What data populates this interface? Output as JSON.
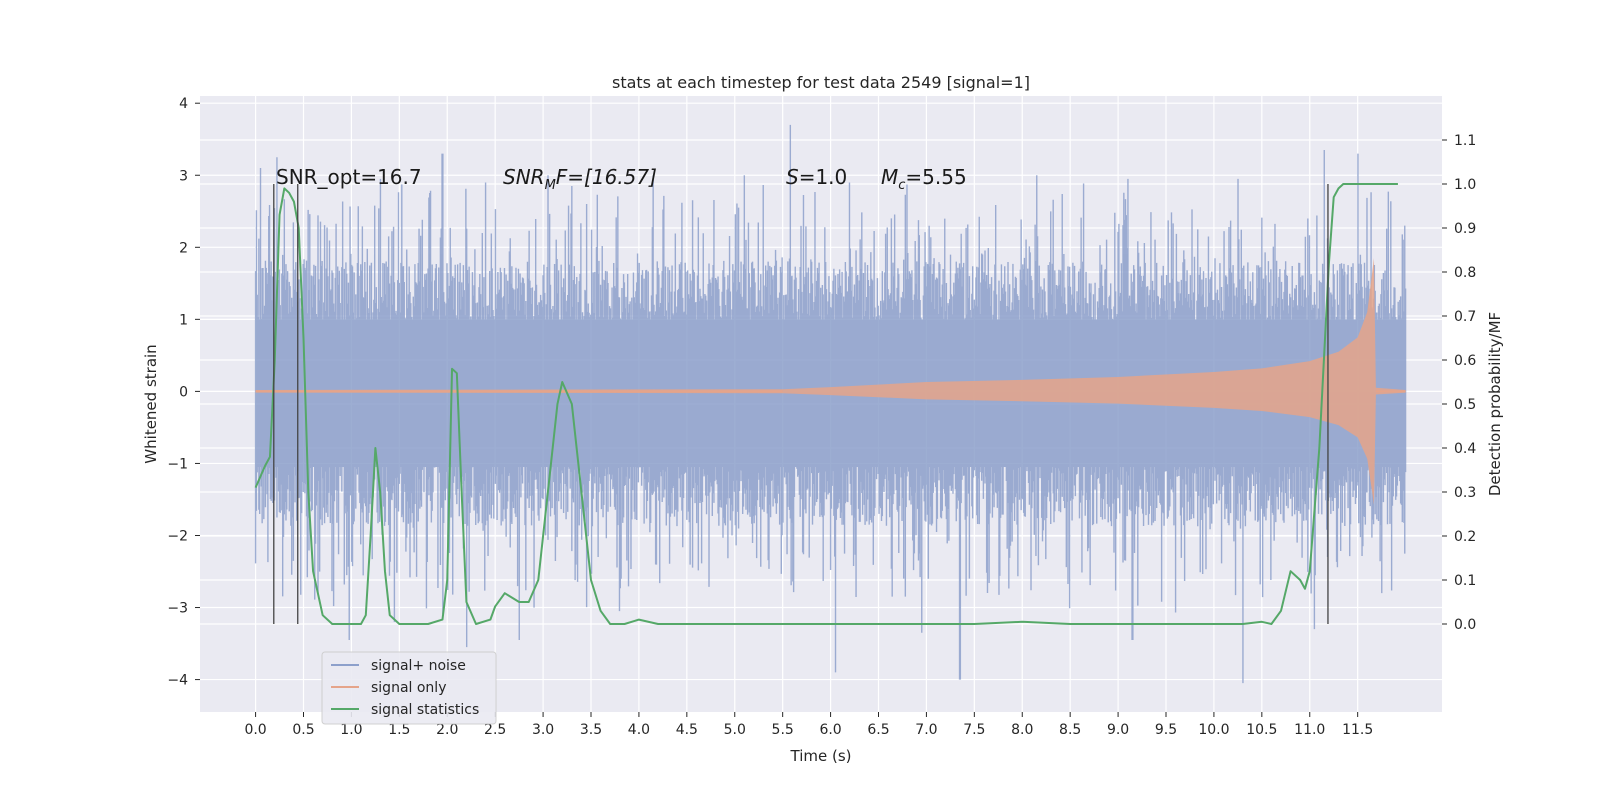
{
  "chart_data": {
    "type": "line",
    "title": "stats at each timestep for test data 2549 [signal=1]",
    "xlabel": "Time (s)",
    "ylabel": "Whitened strain",
    "ylabel_right": "Detection probability/MF",
    "xlim": [
      -0.58,
      12.38
    ],
    "ylim": [
      -4.45,
      4.1
    ],
    "ylim_right": [
      -0.2,
      1.2
    ],
    "grid": true,
    "xticks": [
      "0.0",
      "0.5",
      "1.0",
      "1.5",
      "2.0",
      "2.5",
      "3.0",
      "3.5",
      "4.0",
      "4.5",
      "5.0",
      "5.5",
      "6.0",
      "6.5",
      "7.0",
      "7.5",
      "8.0",
      "8.5",
      "9.0",
      "9.5",
      "10.0",
      "10.5",
      "11.0",
      "11.5"
    ],
    "yticks": [
      "4",
      "3",
      "2",
      "1",
      "0",
      "−1",
      "−2",
      "−3",
      "−4"
    ],
    "yticks_right": [
      "0.0",
      "0.1",
      "0.2",
      "0.3",
      "0.4",
      "0.5",
      "0.6",
      "0.7",
      "0.8",
      "0.9",
      "1.0",
      "1.1"
    ],
    "annotations": {
      "snr_opt": "SNR_opt=16.7",
      "snr_mf": "SNRₘF=[16.57]",
      "snr_mf_base": "SNR",
      "snr_mf_sub": "M",
      "snr_mf_rest": "F=[16.57]",
      "s_var": "S",
      "s_rest": "=1.0",
      "mc_var": "M",
      "mc_sub": "c",
      "mc_rest": "=5.55"
    },
    "vertical_markers_s": [
      0.19,
      0.44,
      11.19
    ],
    "legend_placement": "lower-left",
    "series": [
      {
        "name": "signal+ noise",
        "color": "#8da0cb",
        "kind": "noise",
        "x_range": [
          0.0,
          12.0
        ],
        "band_typical": [
          -1.7,
          1.65
        ],
        "max_spikes": [
          {
            "x": 0.05,
            "y": 3.1
          },
          {
            "x": 0.22,
            "y": 3.25
          },
          {
            "x": 1.3,
            "y": 2.95
          },
          {
            "x": 1.95,
            "y": 3.3
          },
          {
            "x": 2.4,
            "y": 2.9
          },
          {
            "x": 3.05,
            "y": 3.0
          },
          {
            "x": 4.15,
            "y": 3.0
          },
          {
            "x": 5.1,
            "y": 3.0
          },
          {
            "x": 5.58,
            "y": 3.7
          },
          {
            "x": 6.2,
            "y": 2.9
          },
          {
            "x": 8.15,
            "y": 3.0
          },
          {
            "x": 9.1,
            "y": 2.95
          },
          {
            "x": 10.25,
            "y": 2.95
          },
          {
            "x": 11.15,
            "y": 3.35
          },
          {
            "x": 11.5,
            "y": 3.3
          }
        ],
        "min_spikes": [
          {
            "x": 0.98,
            "y": -3.45
          },
          {
            "x": 1.45,
            "y": -3.2
          },
          {
            "x": 2.2,
            "y": -3.55
          },
          {
            "x": 2.75,
            "y": -3.45
          },
          {
            "x": 3.8,
            "y": -3.05
          },
          {
            "x": 6.05,
            "y": -3.9
          },
          {
            "x": 6.95,
            "y": -3.35
          },
          {
            "x": 7.35,
            "y": -4.0
          },
          {
            "x": 9.15,
            "y": -3.45
          },
          {
            "x": 10.3,
            "y": -4.05
          },
          {
            "x": 11.05,
            "y": -3.3
          }
        ]
      },
      {
        "name": "signal only",
        "color": "#e5a48a",
        "kind": "chirp",
        "x_range": [
          0.0,
          12.0
        ],
        "envelope": [
          {
            "x": 0.0,
            "y": 0.02
          },
          {
            "x": 5.5,
            "y": 0.03
          },
          {
            "x": 6.0,
            "y": 0.06
          },
          {
            "x": 7.0,
            "y": 0.13
          },
          {
            "x": 8.0,
            "y": 0.16
          },
          {
            "x": 9.0,
            "y": 0.2
          },
          {
            "x": 10.0,
            "y": 0.27
          },
          {
            "x": 10.5,
            "y": 0.32
          },
          {
            "x": 11.0,
            "y": 0.42
          },
          {
            "x": 11.3,
            "y": 0.55
          },
          {
            "x": 11.5,
            "y": 0.75
          },
          {
            "x": 11.6,
            "y": 1.1
          },
          {
            "x": 11.67,
            "y": 1.85
          },
          {
            "x": 11.69,
            "y": 0.05
          },
          {
            "x": 12.0,
            "y": 0.02
          }
        ]
      },
      {
        "name": "signal statistics",
        "color": "#55a868",
        "kind": "line",
        "axis": "right",
        "points": [
          [
            0.0,
            0.31
          ],
          [
            0.1,
            0.36
          ],
          [
            0.15,
            0.38
          ],
          [
            0.2,
            0.6
          ],
          [
            0.25,
            0.93
          ],
          [
            0.3,
            0.99
          ],
          [
            0.35,
            0.98
          ],
          [
            0.4,
            0.96
          ],
          [
            0.45,
            0.9
          ],
          [
            0.5,
            0.65
          ],
          [
            0.55,
            0.3
          ],
          [
            0.6,
            0.12
          ],
          [
            0.7,
            0.02
          ],
          [
            0.8,
            0.0
          ],
          [
            0.9,
            0.0
          ],
          [
            1.0,
            0.0
          ],
          [
            1.1,
            0.0
          ],
          [
            1.15,
            0.02
          ],
          [
            1.2,
            0.2
          ],
          [
            1.25,
            0.4
          ],
          [
            1.3,
            0.3
          ],
          [
            1.35,
            0.12
          ],
          [
            1.4,
            0.02
          ],
          [
            1.5,
            0.0
          ],
          [
            1.6,
            0.0
          ],
          [
            1.8,
            0.0
          ],
          [
            1.95,
            0.01
          ],
          [
            2.0,
            0.1
          ],
          [
            2.05,
            0.58
          ],
          [
            2.1,
            0.57
          ],
          [
            2.15,
            0.3
          ],
          [
            2.2,
            0.05
          ],
          [
            2.3,
            0.0
          ],
          [
            2.45,
            0.01
          ],
          [
            2.5,
            0.04
          ],
          [
            2.6,
            0.07
          ],
          [
            2.75,
            0.05
          ],
          [
            2.85,
            0.05
          ],
          [
            2.95,
            0.1
          ],
          [
            3.05,
            0.3
          ],
          [
            3.15,
            0.5
          ],
          [
            3.2,
            0.55
          ],
          [
            3.3,
            0.5
          ],
          [
            3.4,
            0.3
          ],
          [
            3.5,
            0.1
          ],
          [
            3.6,
            0.03
          ],
          [
            3.7,
            0.0
          ],
          [
            3.85,
            0.0
          ],
          [
            4.0,
            0.01
          ],
          [
            4.2,
            0.0
          ],
          [
            5.0,
            0.0
          ],
          [
            6.0,
            0.0
          ],
          [
            7.0,
            0.0
          ],
          [
            7.5,
            0.0
          ],
          [
            8.0,
            0.005
          ],
          [
            8.5,
            0.0
          ],
          [
            9.5,
            0.0
          ],
          [
            10.3,
            0.0
          ],
          [
            10.5,
            0.005
          ],
          [
            10.6,
            0.0
          ],
          [
            10.7,
            0.03
          ],
          [
            10.8,
            0.12
          ],
          [
            10.9,
            0.1
          ],
          [
            10.95,
            0.08
          ],
          [
            11.0,
            0.12
          ],
          [
            11.1,
            0.4
          ],
          [
            11.2,
            0.82
          ],
          [
            11.25,
            0.97
          ],
          [
            11.3,
            0.99
          ],
          [
            11.35,
            1.0
          ],
          [
            11.45,
            1.0
          ],
          [
            11.6,
            1.0
          ],
          [
            11.75,
            1.0
          ],
          [
            11.92,
            1.0
          ]
        ]
      }
    ]
  }
}
